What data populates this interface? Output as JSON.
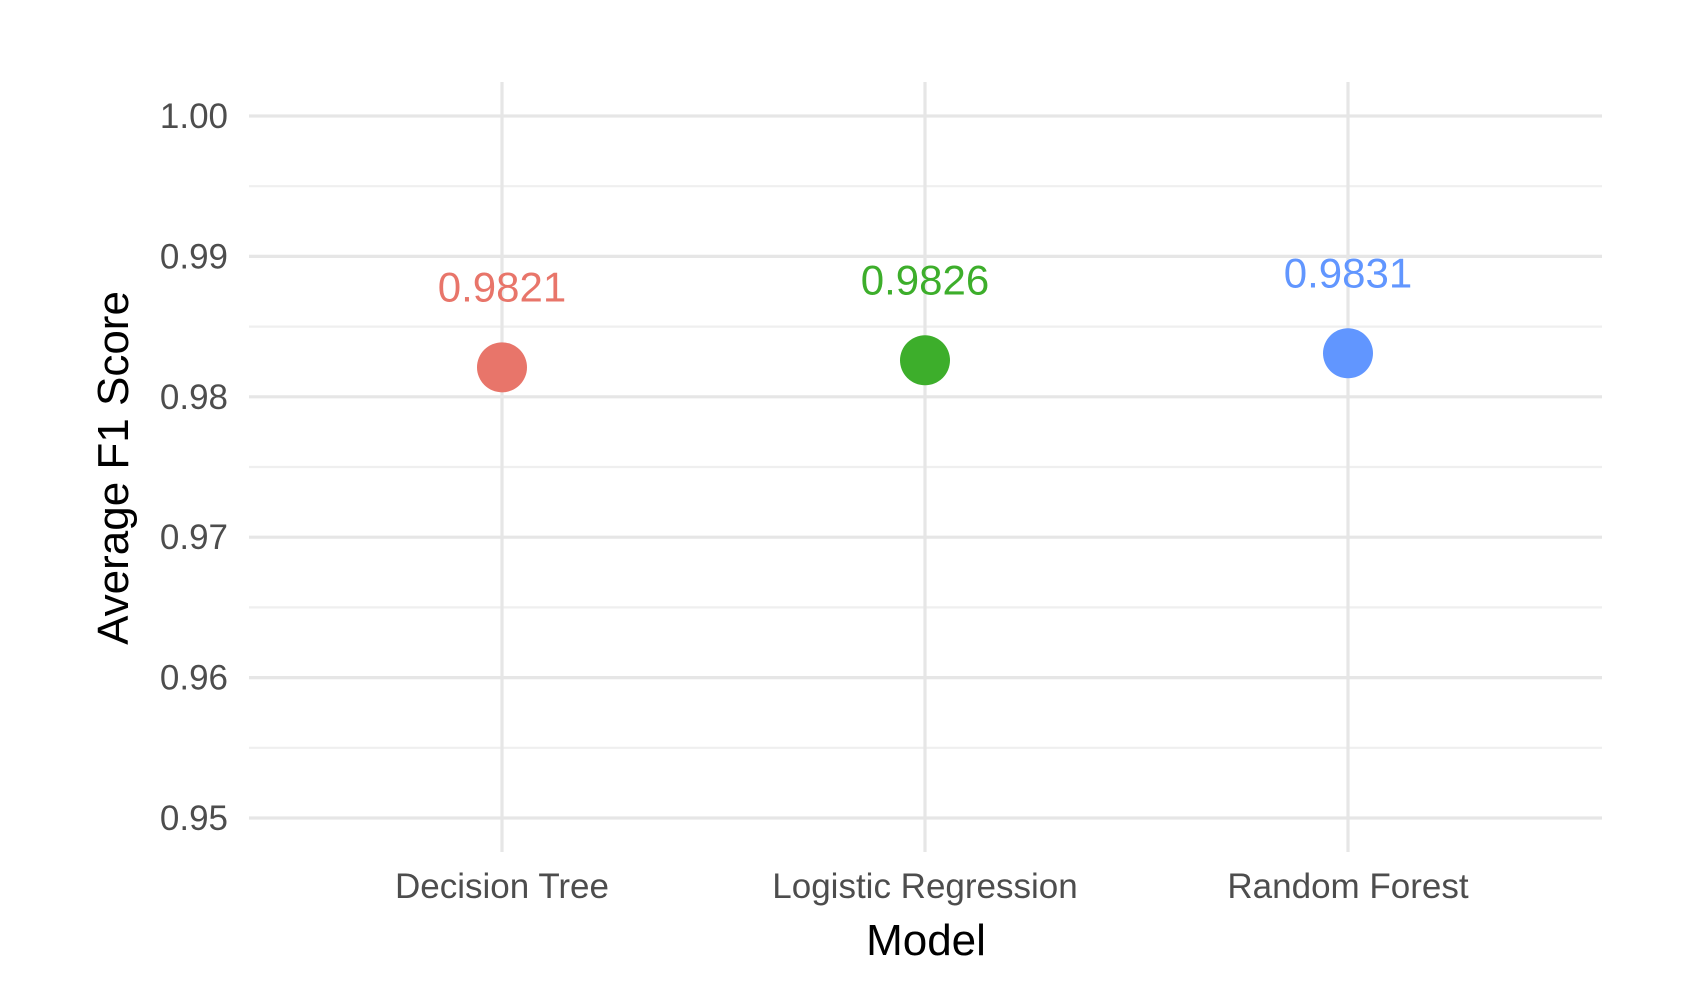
{
  "chart_data": {
    "type": "scatter",
    "title": "",
    "xlabel": "Model",
    "ylabel": "Average F1 Score",
    "categories": [
      "Decision Tree",
      "Logistic Regression",
      "Random Forest"
    ],
    "values": [
      0.9821,
      0.9826,
      0.9831
    ],
    "labels": [
      "0.9821",
      "0.9826",
      "0.9831"
    ],
    "colors": [
      "#E8756A",
      "#3DAE2B",
      "#6196FF"
    ],
    "ylim": [
      0.95,
      1.0
    ],
    "yticks": [
      "0.95",
      "0.96",
      "0.97",
      "0.98",
      "0.99",
      "1.00"
    ],
    "grid": true,
    "legend": "none"
  }
}
